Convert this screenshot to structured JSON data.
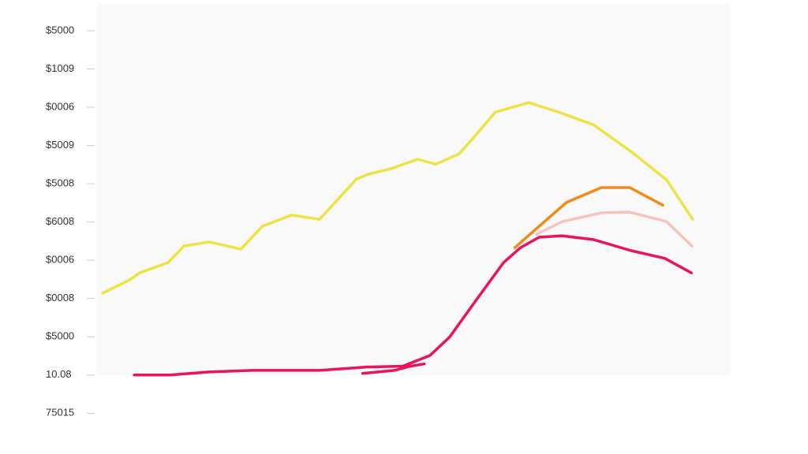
{
  "chart_data": {
    "type": "line",
    "xlim": [
      0,
      100
    ],
    "ylim": [
      -1.2,
      9.7
    ],
    "yticks": [
      {
        "value": 9,
        "label": "$5000"
      },
      {
        "value": 8,
        "label": "$1009"
      },
      {
        "value": 7,
        "label": "$0006"
      },
      {
        "value": 6,
        "label": "$5009"
      },
      {
        "value": 5,
        "label": "$5008"
      },
      {
        "value": 4,
        "label": "$6008"
      },
      {
        "value": 3,
        "label": "$0006"
      },
      {
        "value": 2,
        "label": "$0008"
      },
      {
        "value": 1,
        "label": "$5000"
      },
      {
        "value": 0,
        "label": "10.08"
      },
      {
        "value": -1,
        "label": "75015"
      }
    ],
    "grid": false,
    "series": [
      {
        "color": "#ede344",
        "x": [
          1.0,
          5.3,
          6.8,
          11.3,
          13.8,
          17.8,
          22.8,
          26.2,
          30.8,
          35.2,
          41.0,
          42.9,
          46.4,
          50.7,
          53.5,
          57.2,
          59.5,
          62.9,
          68.2,
          72.9,
          78.4,
          84.3,
          89.9,
          94.0
        ],
        "values": [
          2.14,
          2.49,
          2.67,
          2.94,
          3.37,
          3.48,
          3.29,
          3.89,
          4.18,
          4.07,
          5.12,
          5.25,
          5.39,
          5.64,
          5.51,
          5.78,
          6.21,
          6.87,
          7.12,
          6.87,
          6.54,
          5.84,
          5.1,
          4.07
        ]
      },
      {
        "color": "#f08a1c",
        "x": [
          66.0,
          69.4,
          74.1,
          79.6,
          84.1,
          89.3
        ],
        "values": [
          3.33,
          3.83,
          4.51,
          4.9,
          4.9,
          4.44
        ]
      },
      {
        "color": "#f6c4bd",
        "x": [
          69.4,
          73.5,
          79.6,
          84.0,
          89.9,
          93.9
        ],
        "values": [
          3.68,
          4.01,
          4.24,
          4.26,
          4.01,
          3.37
        ]
      },
      {
        "color": "#e8145e",
        "x": [
          6.0,
          11.6,
          17.8,
          24.6,
          35.2,
          42.7,
          48.3,
          52.6,
          55.7,
          59.5,
          64.2,
          66.9,
          69.8,
          73.4,
          78.4,
          84.3,
          89.6,
          93.8
        ],
        "values": [
          0,
          0,
          0.08,
          0.12,
          0.12,
          0.21,
          0.23,
          0.51,
          0.99,
          1.87,
          2.94,
          3.33,
          3.6,
          3.64,
          3.54,
          3.25,
          3.05,
          2.67
        ]
      },
      {
        "color": "#e8145e",
        "x": [
          42.0,
          47.0,
          49.5,
          51.7
        ],
        "values": [
          0.04,
          0.12,
          0.23,
          0.29
        ]
      }
    ]
  }
}
